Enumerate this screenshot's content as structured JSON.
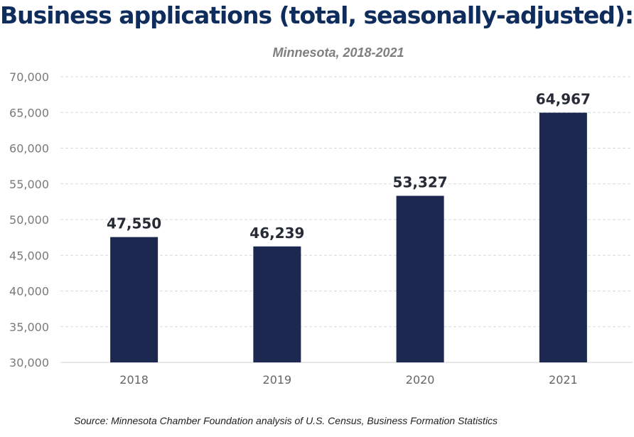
{
  "chart_data": {
    "type": "bar",
    "title": "Business applications (total, seasonally-adjusted):",
    "subtitle": "Minnesota, 2018-2021",
    "xlabel": "",
    "ylabel": "",
    "categories": [
      "2018",
      "2019",
      "2020",
      "2021"
    ],
    "values": [
      47550,
      46239,
      53327,
      64967
    ],
    "data_labels": [
      "47,550",
      "46,239",
      "53,327",
      "64,967"
    ],
    "ylim": [
      30000,
      70000
    ],
    "yticks": [
      30000,
      35000,
      40000,
      45000,
      50000,
      55000,
      60000,
      65000,
      70000
    ],
    "ytick_labels": [
      "30,000",
      "35,000",
      "40,000",
      "45,000",
      "50,000",
      "55,000",
      "60,000",
      "65,000",
      "70,000"
    ],
    "grid": true,
    "legend": "none",
    "bar_color": "#1c2850",
    "source": "Source: Minnesota Chamber Foundation analysis of U.S. Census, Business Formation Statistics"
  }
}
